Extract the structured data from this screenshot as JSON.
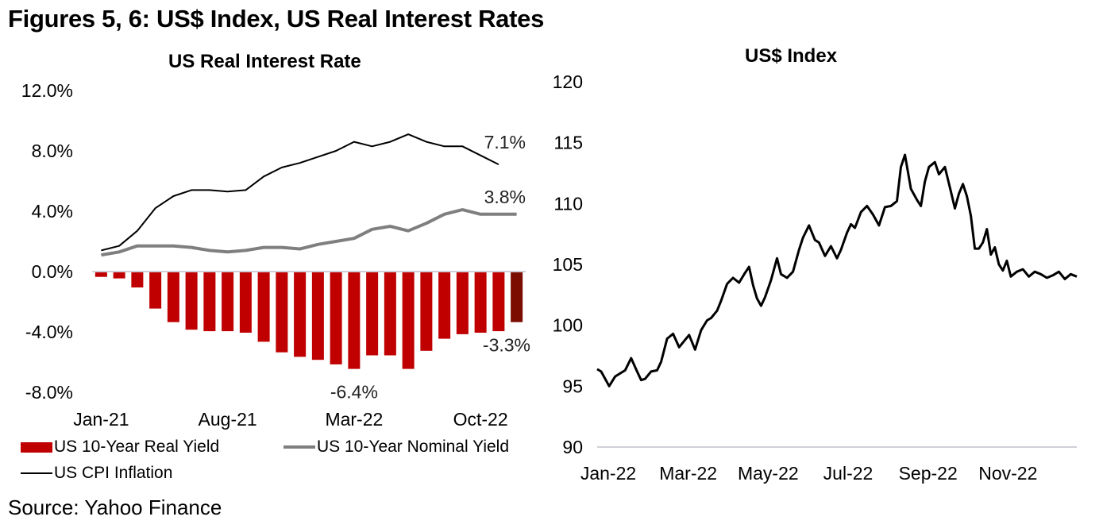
{
  "figure": {
    "title": "Figures 5, 6: US$ Index, US Real Interest Rates",
    "source": "Source: Yahoo Finance"
  },
  "colors": {
    "real_yield": "#C00000",
    "real_yield_latest": "#7B0C00",
    "nominal_yield": "#7F7F7F",
    "cpi": "#000000",
    "dxy": "#000000",
    "axis_line": "#D0D0D8"
  },
  "chart_data": [
    {
      "type": "bar",
      "title": "US Real Interest Rate",
      "xlabel": "",
      "ylabel": "",
      "ylim": [
        -8.0,
        12.0
      ],
      "yticks": [
        "12.0%",
        "8.0%",
        "4.0%",
        "0.0%",
        "-4.0%",
        "-8.0%"
      ],
      "ytick_values": [
        12,
        8,
        4,
        0,
        -4,
        -8
      ],
      "categories": [
        "Jan-21",
        "Feb-21",
        "Mar-21",
        "Apr-21",
        "May-21",
        "Jun-21",
        "Jul-21",
        "Aug-21",
        "Sep-21",
        "Oct-21",
        "Nov-21",
        "Dec-21",
        "Jan-22",
        "Feb-22",
        "Mar-22",
        "Apr-22",
        "May-22",
        "Jun-22",
        "Jul-22",
        "Aug-22",
        "Sep-22",
        "Oct-22",
        "Nov-22",
        "Dec-22"
      ],
      "xtick_labels": [
        {
          "label": "Jan-21",
          "index": 0
        },
        {
          "label": "Aug-21",
          "index": 7
        },
        {
          "label": "Mar-22",
          "index": 14
        },
        {
          "label": "Oct-22",
          "index": 21
        }
      ],
      "series": [
        {
          "name": "US 10-Year Real Yield",
          "kind": "bar",
          "values": [
            -0.3,
            -0.4,
            -1.0,
            -2.4,
            -3.3,
            -3.8,
            -3.9,
            -3.9,
            -4.0,
            -4.6,
            -5.3,
            -5.6,
            -5.8,
            -6.1,
            -6.4,
            -5.5,
            -5.5,
            -6.4,
            -5.2,
            -4.4,
            -4.1,
            -4.0,
            -3.9,
            -3.3
          ]
        },
        {
          "name": "US 10-Year Nominal Yield",
          "kind": "line",
          "values": [
            1.1,
            1.3,
            1.7,
            1.7,
            1.7,
            1.6,
            1.4,
            1.3,
            1.4,
            1.6,
            1.6,
            1.5,
            1.8,
            2.0,
            2.2,
            2.8,
            3.0,
            2.7,
            3.2,
            3.8,
            4.1,
            3.8,
            3.8,
            3.8
          ]
        },
        {
          "name": "US CPI Inflation",
          "kind": "line",
          "values": [
            1.4,
            1.7,
            2.7,
            4.2,
            5.0,
            5.4,
            5.4,
            5.3,
            5.4,
            6.3,
            6.9,
            7.2,
            7.6,
            8.0,
            8.6,
            8.3,
            8.6,
            9.1,
            8.6,
            8.3,
            8.3,
            7.7,
            7.1
          ]
        }
      ],
      "annotations": [
        {
          "text": "7.1%",
          "series": "US CPI Inflation"
        },
        {
          "text": "3.8%",
          "series": "US 10-Year Nominal Yield"
        },
        {
          "text": "-6.4%",
          "series": "US 10-Year Real Yield",
          "category": "Mar-22"
        },
        {
          "text": "-3.3%",
          "series": "US 10-Year Real Yield",
          "category": "Dec-22"
        }
      ],
      "legend": {
        "placement": "bottom",
        "entries": [
          "US 10-Year Real Yield",
          "US 10-Year Nominal Yield",
          "US CPI Inflation"
        ]
      },
      "grid": false
    },
    {
      "type": "line",
      "title": "US$ Index",
      "xlabel": "",
      "ylabel": "",
      "ylim": [
        90,
        120
      ],
      "yticks": [
        "120",
        "115",
        "110",
        "105",
        "100",
        "95",
        "90"
      ],
      "ytick_values": [
        120,
        115,
        110,
        105,
        100,
        95,
        90
      ],
      "xlim_months": [
        0,
        12
      ],
      "xtick_labels": [
        {
          "label": "Jan-22",
          "month": 0
        },
        {
          "label": "Mar-22",
          "month": 2
        },
        {
          "label": "May-22",
          "month": 4
        },
        {
          "label": "Jul-22",
          "month": 6
        },
        {
          "label": "Sep-22",
          "month": 8
        },
        {
          "label": "Nov-22",
          "month": 10
        }
      ],
      "series": [
        {
          "name": "US$ Index",
          "x_months": [
            0.0,
            0.1,
            0.2,
            0.3,
            0.45,
            0.55,
            0.7,
            0.85,
            1.0,
            1.1,
            1.2,
            1.35,
            1.5,
            1.6,
            1.75,
            1.9,
            2.05,
            2.2,
            2.3,
            2.45,
            2.6,
            2.75,
            2.85,
            3.0,
            3.1,
            3.25,
            3.4,
            3.55,
            3.7,
            3.8,
            3.9,
            4.0,
            4.1,
            4.2,
            4.35,
            4.5,
            4.6,
            4.75,
            4.9,
            5.05,
            5.15,
            5.3,
            5.45,
            5.55,
            5.7,
            5.85,
            6.0,
            6.1,
            6.25,
            6.35,
            6.45,
            6.6,
            6.75,
            6.9,
            7.05,
            7.2,
            7.35,
            7.5,
            7.6,
            7.7,
            7.85,
            8.0,
            8.1,
            8.2,
            8.3,
            8.45,
            8.55,
            8.7,
            8.85,
            8.95,
            9.05,
            9.15,
            9.25,
            9.35,
            9.45,
            9.55,
            9.65,
            9.75,
            9.85,
            9.95,
            10.05,
            10.15,
            10.25,
            10.35,
            10.5,
            10.65,
            10.8,
            10.95,
            11.1,
            11.25,
            11.4,
            11.55,
            11.7,
            11.85,
            12.0
          ],
          "values": [
            96.4,
            96.2,
            95.6,
            95.0,
            95.8,
            96.0,
            96.3,
            97.3,
            96.2,
            95.5,
            95.6,
            96.2,
            96.3,
            97.0,
            98.9,
            99.3,
            98.2,
            98.8,
            99.2,
            98.0,
            99.6,
            100.4,
            100.6,
            101.2,
            102.0,
            103.4,
            103.9,
            103.5,
            104.3,
            104.8,
            103.3,
            102.2,
            101.6,
            102.3,
            103.7,
            105.5,
            104.2,
            103.9,
            104.4,
            106.2,
            107.2,
            108.2,
            107.0,
            106.8,
            105.7,
            106.5,
            105.5,
            106.2,
            107.6,
            108.3,
            108.0,
            109.3,
            109.8,
            109.1,
            108.2,
            109.7,
            109.8,
            110.2,
            113.0,
            114.0,
            111.2,
            110.3,
            109.8,
            111.8,
            113.0,
            113.4,
            112.4,
            113.0,
            111.0,
            109.6,
            110.8,
            111.6,
            110.6,
            109.0,
            106.3,
            106.3,
            106.8,
            107.9,
            105.8,
            106.4,
            105.0,
            104.5,
            105.3,
            104.0,
            104.4,
            104.6,
            104.0,
            104.4,
            104.2,
            103.9,
            104.1,
            104.4,
            103.8,
            104.2,
            104.0
          ]
        }
      ],
      "legend": null,
      "grid": false
    }
  ]
}
